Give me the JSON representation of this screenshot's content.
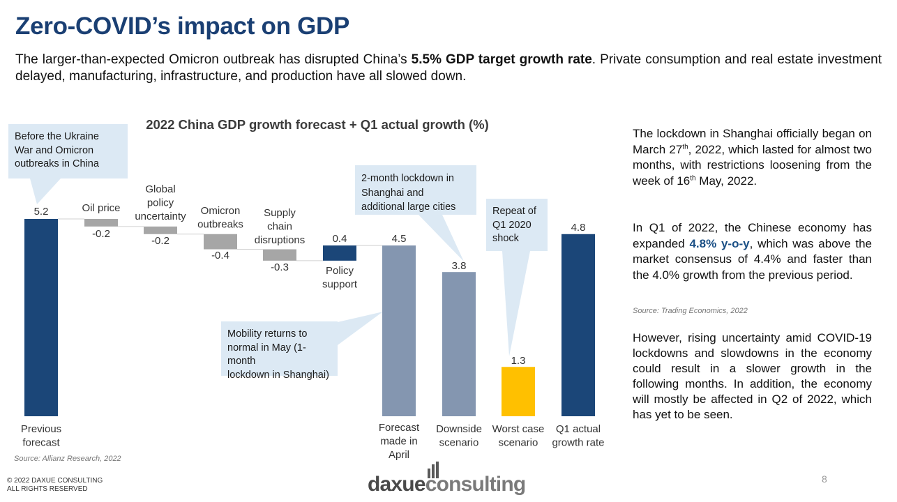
{
  "title": "Zero-COVID’s impact on GDP",
  "subtitle": {
    "part1": "The larger-than-expected Omicron outbreak has disrupted China’s ",
    "bold": "5.5% GDP target growth rate",
    "part2": ". Private consumption and real estate investment delayed, manufacturing, infrastructure, and production have all slowed down."
  },
  "chart_data": {
    "type": "bar",
    "subtype": "waterfall",
    "title": "2022 China GDP growth forecast + Q1 actual growth (%)",
    "categories": [
      {
        "label": [
          "Previous",
          "forecast"
        ],
        "value_label": "5.2"
      },
      {
        "label": [
          "Oil price"
        ],
        "value_label": "-0.2"
      },
      {
        "label": [
          "Global",
          "policy",
          "uncertainty"
        ],
        "value_label": "-0.2"
      },
      {
        "label": [
          "Omicron",
          "outbreaks"
        ],
        "value_label": "-0.4"
      },
      {
        "label": [
          "Supply",
          "chain",
          "disruptions"
        ],
        "value_label": "-0.3"
      },
      {
        "label": [
          "Policy",
          "support"
        ],
        "value_label": "0.4"
      },
      {
        "label": [
          "Forecast",
          "made in",
          "April"
        ],
        "value_label": "4.5"
      },
      {
        "label": [
          "Downside",
          "scenario"
        ],
        "value_label": "3.8"
      },
      {
        "label": [
          "Worst case",
          "scenario"
        ],
        "value_label": "1.3"
      },
      {
        "label": [
          "Q1 actual",
          "growth rate"
        ],
        "value_label": "4.8"
      }
    ],
    "bars": [
      {
        "name": "Previous forecast",
        "start": 0,
        "end": 5.2,
        "color": "#1b4678"
      },
      {
        "name": "Oil price",
        "start": 5.2,
        "end": 5.0,
        "color": "#a6a6a6"
      },
      {
        "name": "Global policy uncertainty",
        "start": 5.0,
        "end": 4.8,
        "color": "#a6a6a6"
      },
      {
        "name": "Omicron outbreaks",
        "start": 4.8,
        "end": 4.4,
        "color": "#a6a6a6"
      },
      {
        "name": "Supply chain disruptions",
        "start": 4.4,
        "end": 4.1,
        "color": "#a6a6a6"
      },
      {
        "name": "Policy support",
        "start": 4.1,
        "end": 4.5,
        "color": "#1b4678"
      },
      {
        "name": "Forecast made in April",
        "start": 0,
        "end": 4.5,
        "color": "#8496b0"
      },
      {
        "name": "Downside scenario",
        "start": 0,
        "end": 3.8,
        "color": "#8496b0"
      },
      {
        "name": "Worst case scenario",
        "start": 0,
        "end": 1.3,
        "color": "#ffc000"
      },
      {
        "name": "Q1 actual growth rate",
        "start": 0,
        "end": 4.8,
        "color": "#1b4678"
      }
    ],
    "ylim": [
      0,
      5.2
    ],
    "xlabel": "",
    "ylabel": "",
    "grid": false,
    "source": "Source: Allianz Research, 2022"
  },
  "callouts": {
    "before": [
      "Before the Ukraine",
      "War and Omicron",
      "outbreaks in China"
    ],
    "lockdown": [
      "2-month lockdown in",
      "Shanghai and",
      "additional large cities"
    ],
    "repeat": [
      "Repeat of",
      "Q1 2020",
      "shock"
    ],
    "mobility": [
      "Mobility returns to",
      "normal in May (1-month",
      "lockdown in Shanghai)"
    ]
  },
  "right_column": {
    "p1_a": "The lockdown in Shanghai officially began on March 27",
    "p1_sup1": "th",
    "p1_b": ", 2022, which lasted for almost two months, with restrictions loosening from the week of 16",
    "p1_sup2": "th",
    "p1_c": " May, 2022.",
    "p2_a": "In Q1 of 2022, the Chinese economy has expanded ",
    "p2_bold": "4.8% y-o-y",
    "p2_b": ", which was above the market consensus of 4.4% and faster than the 4.0% growth from the previous period.",
    "source": "Source: Trading Economics, 2022",
    "p3": "However, rising uncertainty amid COVID-19 lockdowns and slowdowns in the economy could result in a slower growth in the following months. In addition, the economy will mostly be affected in Q2 of 2022, which has yet to be seen."
  },
  "footer": {
    "copyright": [
      "© 2022 DAXUE CONSULTING",
      "ALL RIGHTS RESERVED"
    ],
    "page_number": "8",
    "logo_part1": "daxue",
    "logo_part2": "consulting"
  }
}
